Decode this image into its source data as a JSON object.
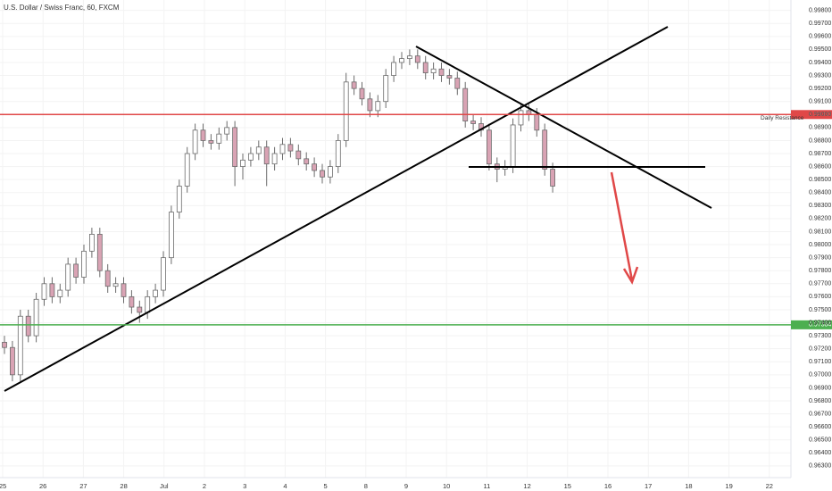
{
  "chart_data": {
    "type": "candlestick",
    "title": "U.S. Dollar / Swiss Franc, 60, FXCM",
    "categories": [
      "25",
      "26",
      "27",
      "28",
      "Jul",
      "2",
      "3",
      "4",
      "5",
      "8",
      "9",
      "10",
      "11",
      "12",
      "15",
      "16",
      "17",
      "18",
      "19",
      "22"
    ],
    "up_color": "#ffffff",
    "down_color": "#d9a3b4",
    "wick_color": "#6b6b6b",
    "ylim": [
      0.9621,
      0.9988
    ],
    "yticks": [
      {
        "value": 0.963,
        "label": "0.96300"
      },
      {
        "value": 0.964,
        "label": "0.96400"
      },
      {
        "value": 0.965,
        "label": "0.96500"
      },
      {
        "value": 0.966,
        "label": "0.96600"
      },
      {
        "value": 0.967,
        "label": "0.96700"
      },
      {
        "value": 0.968,
        "label": "0.96800"
      },
      {
        "value": 0.969,
        "label": "0.96900"
      },
      {
        "value": 0.97,
        "label": "0.97000"
      },
      {
        "value": 0.971,
        "label": "0.97100"
      },
      {
        "value": 0.972,
        "label": "0.97200"
      },
      {
        "value": 0.973,
        "label": "0.97300"
      },
      {
        "value": 0.974,
        "label": "0.97400"
      },
      {
        "value": 0.975,
        "label": "0.97500"
      },
      {
        "value": 0.976,
        "label": "0.97600"
      },
      {
        "value": 0.977,
        "label": "0.97700"
      },
      {
        "value": 0.978,
        "label": "0.97800"
      },
      {
        "value": 0.979,
        "label": "0.97900"
      },
      {
        "value": 0.98,
        "label": "0.98000"
      },
      {
        "value": 0.981,
        "label": "0.98100"
      },
      {
        "value": 0.982,
        "label": "0.98200"
      },
      {
        "value": 0.983,
        "label": "0.98300"
      },
      {
        "value": 0.984,
        "label": "0.98400"
      },
      {
        "value": 0.985,
        "label": "0.98500"
      },
      {
        "value": 0.986,
        "label": "0.98600"
      },
      {
        "value": 0.987,
        "label": "0.98700"
      },
      {
        "value": 0.988,
        "label": "0.98800"
      },
      {
        "value": 0.989,
        "label": "0.98900"
      },
      {
        "value": 0.99,
        "label": "0.99000"
      },
      {
        "value": 0.991,
        "label": "0.99100"
      },
      {
        "value": 0.992,
        "label": "0.99200"
      },
      {
        "value": 0.993,
        "label": "0.99300"
      },
      {
        "value": 0.994,
        "label": "0.99400"
      },
      {
        "value": 0.995,
        "label": "0.99500"
      },
      {
        "value": 0.996,
        "label": "0.99600"
      },
      {
        "value": 0.997,
        "label": "0.99700"
      },
      {
        "value": 0.998,
        "label": "0.99800"
      }
    ],
    "levels": [
      {
        "value": 0.99,
        "label": "0.99000",
        "color": "#e04848",
        "annotation": "Daily Resistance"
      },
      {
        "value": 0.97384,
        "label": "0.97384",
        "color": "#4caf50"
      }
    ],
    "open": [
      0.9725,
      0.9721,
      0.97,
      0.9745,
      0.973,
      0.9758,
      0.977,
      0.976,
      0.9765,
      0.9785,
      0.9775,
      0.9795,
      0.9808,
      0.978,
      0.9768,
      0.977,
      0.976,
      0.9752,
      0.9748,
      0.976,
      0.9765,
      0.979,
      0.9825,
      0.9845,
      0.987,
      0.9888,
      0.988,
      0.9878,
      0.9885,
      0.989,
      0.986,
      0.9865,
      0.987,
      0.9875,
      0.9862,
      0.987,
      0.9877,
      0.9872,
      0.9866,
      0.9862,
      0.9857,
      0.9852,
      0.986,
      0.988,
      0.9925,
      0.992,
      0.9912,
      0.9903,
      0.991,
      0.993,
      0.994,
      0.9943,
      0.9945,
      0.994,
      0.9932,
      0.9935,
      0.993,
      0.9928,
      0.992,
      0.9895,
      0.9893,
      0.9888,
      0.9862,
      0.9858,
      0.986,
      0.9892,
      0.9903,
      0.99,
      0.9888,
      0.9858
    ],
    "high": [
      0.973,
      0.9726,
      0.975,
      0.975,
      0.9763,
      0.9775,
      0.9775,
      0.977,
      0.979,
      0.979,
      0.98,
      0.9813,
      0.9813,
      0.9785,
      0.9775,
      0.9775,
      0.9765,
      0.9757,
      0.9765,
      0.977,
      0.9795,
      0.983,
      0.985,
      0.9875,
      0.9893,
      0.9893,
      0.9885,
      0.989,
      0.9895,
      0.9895,
      0.987,
      0.9875,
      0.988,
      0.988,
      0.9875,
      0.9882,
      0.9882,
      0.9877,
      0.9871,
      0.9867,
      0.9862,
      0.9865,
      0.9885,
      0.9932,
      0.993,
      0.9925,
      0.9917,
      0.9915,
      0.9935,
      0.9945,
      0.9948,
      0.995,
      0.995,
      0.9945,
      0.994,
      0.994,
      0.9935,
      0.9933,
      0.9925,
      0.99,
      0.9898,
      0.9893,
      0.9867,
      0.9865,
      0.9897,
      0.9908,
      0.9908,
      0.9905,
      0.9893,
      0.9863
    ],
    "low": [
      0.9716,
      0.9695,
      0.9695,
      0.9725,
      0.9725,
      0.9753,
      0.9755,
      0.9755,
      0.976,
      0.977,
      0.977,
      0.979,
      0.9775,
      0.9763,
      0.9763,
      0.9755,
      0.9747,
      0.974,
      0.9743,
      0.9755,
      0.976,
      0.9785,
      0.982,
      0.984,
      0.9865,
      0.9875,
      0.9873,
      0.9873,
      0.988,
      0.9845,
      0.985,
      0.986,
      0.9865,
      0.9845,
      0.9857,
      0.9865,
      0.9867,
      0.9861,
      0.9857,
      0.9852,
      0.9847,
      0.9847,
      0.9855,
      0.9875,
      0.9915,
      0.9907,
      0.9898,
      0.9898,
      0.9905,
      0.9925,
      0.9935,
      0.9938,
      0.9935,
      0.9927,
      0.9927,
      0.9925,
      0.9923,
      0.9915,
      0.989,
      0.9888,
      0.9883,
      0.9857,
      0.9848,
      0.9853,
      0.9855,
      0.9887,
      0.9895,
      0.9883,
      0.9853,
      0.984
    ],
    "close": [
      0.9721,
      0.97,
      0.9745,
      0.973,
      0.9758,
      0.977,
      0.976,
      0.9765,
      0.9785,
      0.9775,
      0.9795,
      0.9808,
      0.978,
      0.9768,
      0.977,
      0.976,
      0.9752,
      0.9748,
      0.976,
      0.9765,
      0.979,
      0.9825,
      0.9845,
      0.987,
      0.9888,
      0.988,
      0.9878,
      0.9885,
      0.989,
      0.986,
      0.9865,
      0.987,
      0.9875,
      0.9862,
      0.987,
      0.9877,
      0.9872,
      0.9866,
      0.9862,
      0.9857,
      0.9852,
      0.986,
      0.988,
      0.9925,
      0.992,
      0.9912,
      0.9903,
      0.991,
      0.993,
      0.994,
      0.9943,
      0.9945,
      0.994,
      0.9932,
      0.9935,
      0.993,
      0.9928,
      0.992,
      0.9895,
      0.9893,
      0.9888,
      0.9862,
      0.9858,
      0.986,
      0.9892,
      0.9903,
      0.99,
      0.9888,
      0.9858,
      0.9845
    ]
  }
}
